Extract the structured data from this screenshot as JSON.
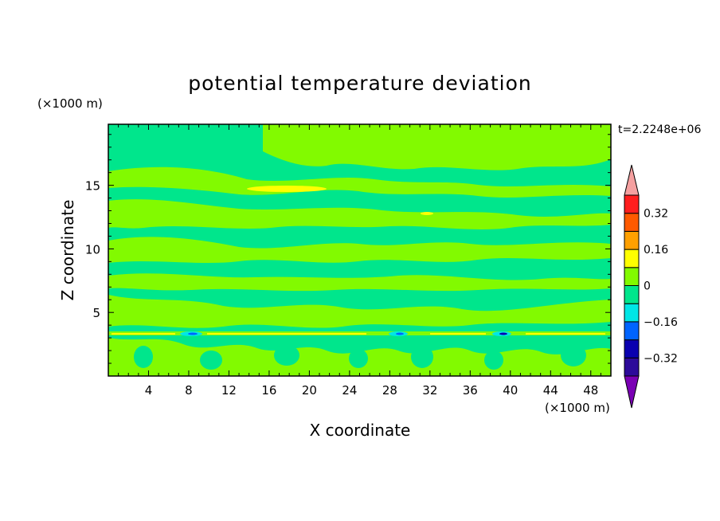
{
  "chart_data": {
    "type": "heatmap",
    "title": "potential temperature deviation",
    "xlabel": "X coordinate",
    "ylabel": "Z coordinate",
    "x_unit": "(×1000 m)",
    "y_unit": "(×1000 m)",
    "time_label": "t=2.2248e+06",
    "xlim": [
      0,
      50
    ],
    "ylim": [
      0,
      19.8
    ],
    "x_ticks": [
      "4",
      "8",
      "12",
      "16",
      "20",
      "24",
      "28",
      "32",
      "36",
      "40",
      "44",
      "48"
    ],
    "y_ticks": [
      "5",
      "10",
      "15"
    ],
    "colorbar": {
      "tick_labels": [
        "0.32",
        "0.16",
        "0",
        "−0.16",
        "−0.32"
      ],
      "levels": [
        -0.4,
        -0.32,
        -0.24,
        -0.16,
        -0.08,
        0,
        0.08,
        0.16,
        0.24,
        0.32,
        0.4
      ],
      "colors": [
        "#7a00b4",
        "#2d0a9a",
        "#0a00b0",
        "#0064ff",
        "#00e6e6",
        "#00e68c",
        "#82fa00",
        "#ffff00",
        "#ffa000",
        "#ff5a00",
        "#ff1e1e",
        "#f5a0a0"
      ]
    },
    "field_description_values": {
      "background_level": 0,
      "background_color": "#00e68c",
      "band_color": "#82fa00",
      "max_anomaly": 0.16,
      "min_anomaly": -0.32
    }
  }
}
